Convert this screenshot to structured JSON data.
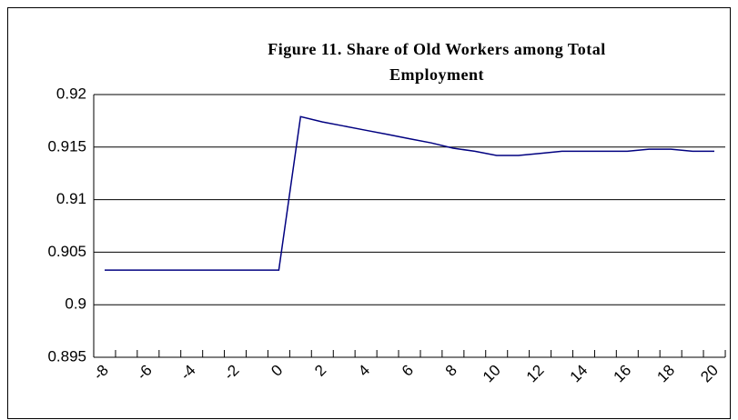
{
  "chart_data": {
    "type": "line",
    "title": "Figure 11. Share of Old Workers among Total Employment",
    "x": [
      -8,
      -7,
      -6,
      -5,
      -4,
      -3,
      -2,
      -1,
      0,
      1,
      2,
      3,
      4,
      5,
      6,
      7,
      8,
      9,
      10,
      11,
      12,
      13,
      14,
      15,
      16,
      17,
      18,
      19,
      20
    ],
    "series": [
      {
        "name": "Share of Old Workers",
        "color": "#000080",
        "values": [
          0.9033,
          0.9033,
          0.9033,
          0.9033,
          0.9033,
          0.9033,
          0.9033,
          0.9033,
          0.9033,
          0.9179,
          0.9174,
          0.917,
          0.9166,
          0.9162,
          0.9158,
          0.9154,
          0.9149,
          0.9146,
          0.9142,
          0.9142,
          0.9144,
          0.9146,
          0.9146,
          0.9146,
          0.9146,
          0.9148,
          0.9148,
          0.9146,
          0.9146
        ]
      }
    ],
    "xlim": [
      -8.5,
      20.5
    ],
    "xticks": [
      -8,
      -6,
      -4,
      -2,
      0,
      2,
      4,
      6,
      8,
      10,
      12,
      14,
      16,
      18,
      20
    ],
    "ylim": [
      0.895,
      0.92
    ],
    "yticks": [
      0.895,
      0.9,
      0.905,
      0.91,
      0.915,
      0.92
    ],
    "grid": true
  }
}
